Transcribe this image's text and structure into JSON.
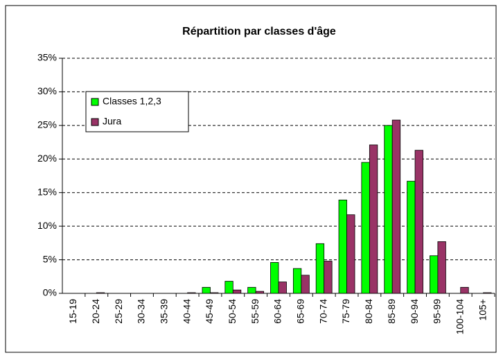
{
  "chart_data": {
    "type": "bar",
    "title": "Répartition par classes d'âge",
    "categories": [
      "15-19",
      "20-24",
      "25-29",
      "30-34",
      "35-39",
      "40-44",
      "45-49",
      "50-54",
      "55-59",
      "60-64",
      "65-69",
      "70-74",
      "75-79",
      "80-84",
      "85-89",
      "90-94",
      "95-99",
      "100-104",
      "105+"
    ],
    "series": [
      {
        "name": "Classes 1,2,3",
        "color": "#00ff00",
        "values": [
          0,
          0,
          0,
          0,
          0,
          0,
          0.9,
          1.8,
          0.9,
          4.6,
          3.7,
          7.4,
          13.9,
          19.5,
          25,
          16.7,
          5.6,
          0,
          0
        ]
      },
      {
        "name": "Jura",
        "color": "#993366",
        "values": [
          0,
          0.1,
          0,
          0,
          0,
          0.1,
          0.1,
          0.5,
          0.3,
          1.7,
          2.7,
          4.8,
          11.7,
          22.1,
          25.8,
          21.3,
          7.7,
          0.9,
          0.1
        ]
      }
    ],
    "ylim": [
      0,
      35
    ],
    "yticks": [
      {
        "value": 0,
        "label": "0%"
      },
      {
        "value": 5,
        "label": "5%"
      },
      {
        "value": 10,
        "label": "10%"
      },
      {
        "value": 15,
        "label": "15%"
      },
      {
        "value": 20,
        "label": "20%"
      },
      {
        "value": 25,
        "label": "25%"
      },
      {
        "value": 30,
        "label": "30%"
      },
      {
        "value": 35,
        "label": "35%"
      }
    ],
    "grid": true,
    "legend": "upper left"
  }
}
